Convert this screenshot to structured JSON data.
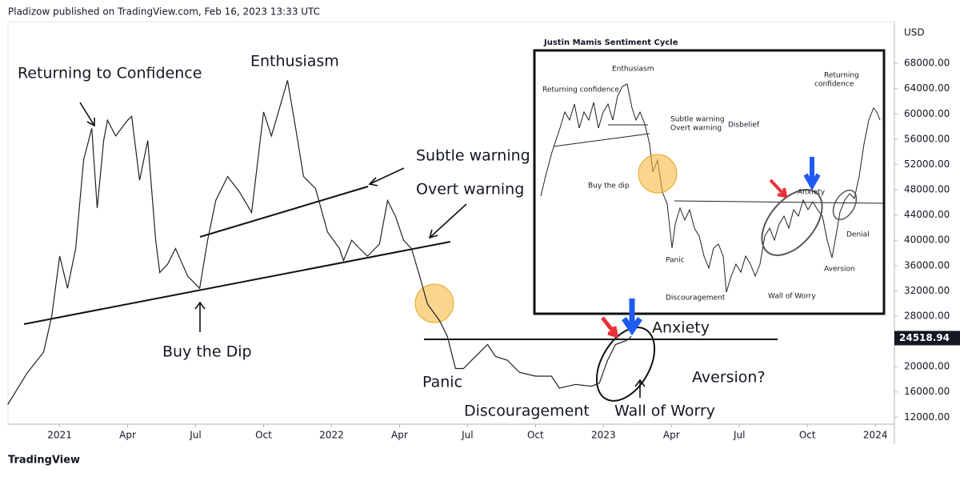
{
  "header": {
    "text": "Pladizow published on TradingView.com, Feb 16, 2023 13:33 UTC"
  },
  "footer": {
    "logo": "TradingView"
  },
  "chart_data": {
    "type": "line",
    "color": "#222222",
    "grid": false,
    "y_unit": "USD",
    "x": [
      2020.809,
      2020.882,
      2020.941,
      2020.971,
      2021.0,
      2021.029,
      2021.059,
      2021.088,
      2021.118,
      2021.138,
      2021.162,
      2021.176,
      2021.206,
      2021.25,
      2021.265,
      2021.294,
      2021.324,
      2021.353,
      2021.368,
      2021.397,
      2021.426,
      2021.471,
      2021.515,
      2021.544,
      2021.574,
      2021.618,
      2021.662,
      2021.706,
      2021.75,
      2021.779,
      2021.838,
      2021.868,
      2021.897,
      2021.941,
      2021.985,
      2022.029,
      2022.044,
      2022.074,
      2022.103,
      2022.132,
      2022.176,
      2022.206,
      2022.235,
      2022.265,
      2022.294,
      2022.324,
      2022.353,
      2022.397,
      2022.426,
      2022.456,
      2022.485,
      2022.515,
      2022.574,
      2022.603,
      2022.647,
      2022.691,
      2022.75,
      2022.809,
      2022.838,
      2022.897,
      2022.956,
      2022.985,
      2023.015,
      2023.044,
      2023.088,
      2023.103
    ],
    "values": [
      14000,
      19100,
      22300,
      28000,
      37500,
      32400,
      38700,
      52700,
      57700,
      45100,
      55800,
      59000,
      56500,
      59000,
      59600,
      49500,
      55800,
      40000,
      34900,
      36200,
      38700,
      34300,
      32400,
      40000,
      46300,
      50100,
      47600,
      44400,
      60300,
      56500,
      65300,
      57700,
      50100,
      48200,
      41300,
      38700,
      36800,
      40000,
      38700,
      37500,
      39400,
      46300,
      43800,
      40000,
      38700,
      34300,
      29900,
      27300,
      24800,
      19700,
      19700,
      21000,
      23500,
      21600,
      21000,
      19100,
      18500,
      18500,
      16600,
      17200,
      16900,
      17400,
      21000,
      23500,
      24200,
      24800
    ],
    "xlim": [
      2020.81,
      2024.07
    ],
    "xticks": [
      {
        "value": 2021.0,
        "label": "2021"
      },
      {
        "value": 2021.25,
        "label": "Apr"
      },
      {
        "value": 2021.5,
        "label": "Jul"
      },
      {
        "value": 2021.75,
        "label": "Oct"
      },
      {
        "value": 2022.0,
        "label": "2022"
      },
      {
        "value": 2022.25,
        "label": "Apr"
      },
      {
        "value": 2022.5,
        "label": "Jul"
      },
      {
        "value": 2022.75,
        "label": "Oct"
      },
      {
        "value": 2023.0,
        "label": "2023"
      },
      {
        "value": 2023.25,
        "label": "Apr"
      },
      {
        "value": 2023.5,
        "label": "Jul"
      },
      {
        "value": 2023.75,
        "label": "Oct"
      },
      {
        "value": 2024.0,
        "label": "2024"
      }
    ],
    "ylim": [
      10900,
      74600
    ],
    "yticks": [
      {
        "value": 12000,
        "label": "12000.00"
      },
      {
        "value": 16000,
        "label": "16000.00"
      },
      {
        "value": 20000,
        "label": "20000.00"
      },
      {
        "value": 24000,
        "label": "24000.00"
      },
      {
        "value": 28000,
        "label": "28000.00"
      },
      {
        "value": 32000,
        "label": "32000.00"
      },
      {
        "value": 36000,
        "label": "36000.00"
      },
      {
        "value": 40000,
        "label": "40000.00"
      },
      {
        "value": 44000,
        "label": "44000.00"
      },
      {
        "value": 48000,
        "label": "48000.00"
      },
      {
        "value": 52000,
        "label": "52000.00"
      },
      {
        "value": 56000,
        "label": "56000.00"
      },
      {
        "value": 60000,
        "label": "60000.00"
      },
      {
        "value": 64000,
        "label": "64000.00"
      },
      {
        "value": 68000,
        "label": "68000.00"
      }
    ],
    "last_price": 24518.94,
    "annotations": [
      "Returning to Confidence",
      "Enthusiasm",
      "Subtle warning",
      "Overt warning",
      "Buy the Dip",
      "Panic",
      "Discouragement",
      "Anxiety",
      "Aversion?",
      "Wall of Worry"
    ],
    "inset": {
      "title": "Justin Mamis Sentiment Cycle",
      "labels": [
        "Enthusiasm",
        "Returning confidence",
        "Subtle warning",
        "Overt warning",
        "Disbelief",
        "Buy the dip",
        "Panic",
        "Discouragement",
        "Wall of Worry",
        "Anxiety",
        "Aversion",
        "Denial",
        "Returning",
        "confidence"
      ]
    }
  }
}
